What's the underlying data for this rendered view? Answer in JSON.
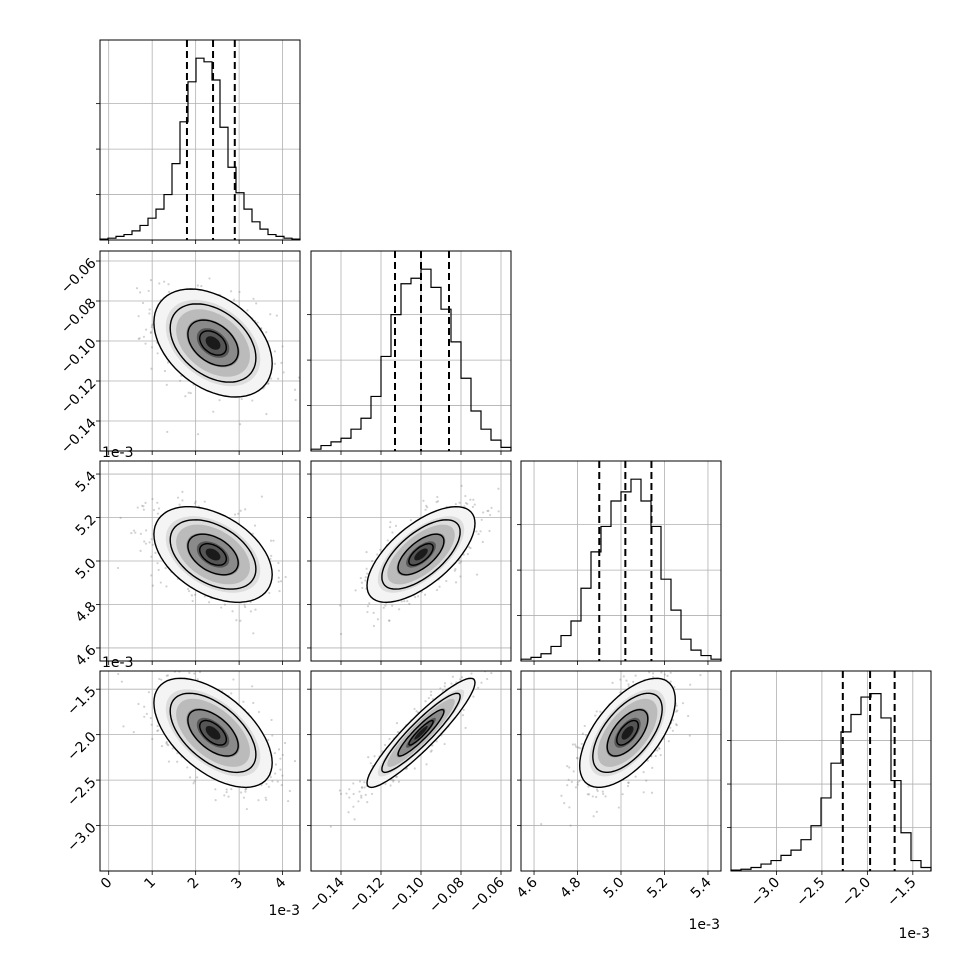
{
  "chart_data": {
    "type": "corner",
    "grid": true,
    "params": [
      {
        "id": "p1",
        "range": [
          -0.2,
          4.4
        ],
        "ticks": [
          0,
          1,
          2,
          3,
          4
        ],
        "tick_labels": [
          "0",
          "1",
          "2",
          "3",
          "4"
        ],
        "offset_label": "1e-3",
        "hist_ymax": 1.1,
        "hist_bins": [
          0.005,
          0.01,
          0.02,
          0.03,
          0.05,
          0.08,
          0.12,
          0.17,
          0.25,
          0.42,
          0.65,
          0.87,
          1.0,
          0.98,
          0.88,
          0.62,
          0.4,
          0.26,
          0.17,
          0.1,
          0.06,
          0.03,
          0.02,
          0.01,
          0.005
        ],
        "quantiles": [
          1.8,
          2.4,
          2.9
        ]
      },
      {
        "id": "p2",
        "range": [
          -0.155,
          -0.055
        ],
        "ticks": [
          -0.06,
          -0.08,
          -0.1,
          -0.12,
          -0.14
        ],
        "tick_labels": [
          "−0.06",
          "−0.08",
          "−0.10",
          "−0.12",
          "−0.14"
        ],
        "offset_label": "",
        "hist_ymax": 1.1,
        "hist_bins": [
          0.01,
          0.03,
          0.05,
          0.07,
          0.12,
          0.18,
          0.3,
          0.52,
          0.75,
          0.92,
          0.95,
          1.0,
          0.9,
          0.78,
          0.6,
          0.4,
          0.22,
          0.12,
          0.06,
          0.02
        ],
        "quantiles": [
          -0.113,
          -0.1,
          -0.086
        ]
      },
      {
        "id": "p3",
        "range": [
          4.54,
          5.46
        ],
        "ticks": [
          4.6,
          4.8,
          5.0,
          5.2,
          5.4
        ],
        "tick_labels": [
          "4.6",
          "4.8",
          "5.0",
          "5.2",
          "5.4"
        ],
        "offset_label": "1e-3",
        "hist_ymax": 1.1,
        "hist_bins": [
          0.01,
          0.02,
          0.04,
          0.08,
          0.14,
          0.22,
          0.4,
          0.6,
          0.74,
          0.88,
          0.93,
          1.0,
          0.88,
          0.74,
          0.45,
          0.28,
          0.12,
          0.06,
          0.03,
          0.01
        ],
        "quantiles": [
          4.9,
          5.02,
          5.14
        ]
      },
      {
        "id": "p4",
        "range": [
          -3.5,
          -1.3
        ],
        "ticks": [
          -3.0,
          -2.5,
          -2.0,
          -1.5
        ],
        "tick_labels": [
          "−3.0",
          "−2.5",
          "−2.0",
          "−1.5"
        ],
        "offset_label": "1e-3",
        "hist_ymax": 1.15,
        "hist_bins": [
          0.005,
          0.01,
          0.02,
          0.04,
          0.06,
          0.09,
          0.12,
          0.18,
          0.26,
          0.42,
          0.62,
          0.8,
          0.9,
          1.0,
          1.02,
          0.88,
          0.52,
          0.22,
          0.06,
          0.02
        ],
        "quantiles": [
          -2.27,
          -1.97,
          -1.7
        ]
      }
    ],
    "pairs": [
      {
        "row": 1,
        "col": 0,
        "mean": [
          2.4,
          -0.101
        ],
        "sd": [
          0.68,
          0.0135
        ],
        "rho": -0.38
      },
      {
        "row": 2,
        "col": 0,
        "mean": [
          2.4,
          5.03
        ],
        "sd": [
          0.68,
          0.11
        ],
        "rho": -0.42
      },
      {
        "row": 2,
        "col": 1,
        "mean": [
          -0.1,
          5.03
        ],
        "sd": [
          0.0135,
          0.11
        ],
        "rho": 0.65
      },
      {
        "row": 3,
        "col": 0,
        "mean": [
          2.4,
          -1.98
        ],
        "sd": [
          0.68,
          0.3
        ],
        "rho": -0.55
      },
      {
        "row": 3,
        "col": 1,
        "mean": [
          -0.1,
          -1.98
        ],
        "sd": [
          0.0135,
          0.3
        ],
        "rho": 0.92
      },
      {
        "row": 3,
        "col": 2,
        "mean": [
          5.03,
          -1.98
        ],
        "sd": [
          0.11,
          0.3
        ],
        "rho": 0.6
      }
    ]
  }
}
